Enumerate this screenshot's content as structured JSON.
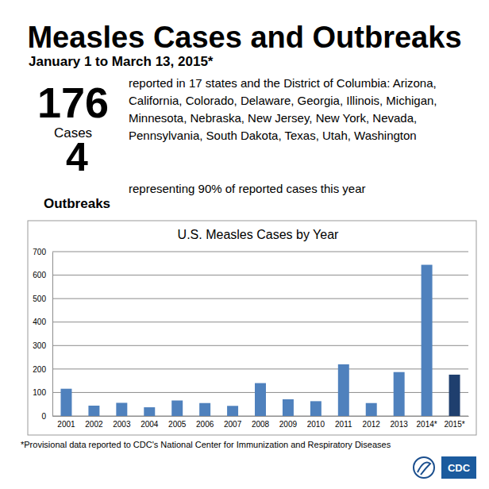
{
  "header": {
    "title": "Measles Cases and Outbreaks",
    "subtitle": "January 1 to March 13, 2015*"
  },
  "stats": [
    {
      "value": 176,
      "label": "Cases",
      "text": "reported in 17 states and the District of Columbia: Arizona, California, Colorado, Delaware, Georgia, Illinois, Michigan, Minnesota, Nebraska, New Jersey, New York, Nevada, Pennsylvania, South Dakota, Texas, Utah, Washington"
    },
    {
      "value": 4,
      "label": "Outbreaks",
      "text": "representing 90% of reported cases this year"
    }
  ],
  "chart_data": {
    "type": "bar",
    "title": "U.S. Measles Cases by Year",
    "categories": [
      "2001",
      "2002",
      "2003",
      "2004",
      "2005",
      "2006",
      "2007",
      "2008",
      "2009",
      "2010",
      "2011",
      "2012",
      "2013",
      "2014*",
      "2015*"
    ],
    "values": [
      116,
      44,
      56,
      37,
      66,
      55,
      43,
      140,
      71,
      63,
      220,
      55,
      187,
      644,
      176
    ],
    "colors": [
      "#4f81bd",
      "#4f81bd",
      "#4f81bd",
      "#4f81bd",
      "#4f81bd",
      "#4f81bd",
      "#4f81bd",
      "#4f81bd",
      "#4f81bd",
      "#4f81bd",
      "#4f81bd",
      "#4f81bd",
      "#4f81bd",
      "#4f81bd",
      "#1f3f6e"
    ],
    "ylim": [
      0,
      700
    ],
    "yticks": [
      0,
      100,
      200,
      300,
      400,
      500,
      600,
      700
    ],
    "grid": true
  },
  "footnote": "*Provisional data reported to CDC's National Center for Immunization and Respiratory Diseases",
  "logo": {
    "text": "CDC"
  }
}
